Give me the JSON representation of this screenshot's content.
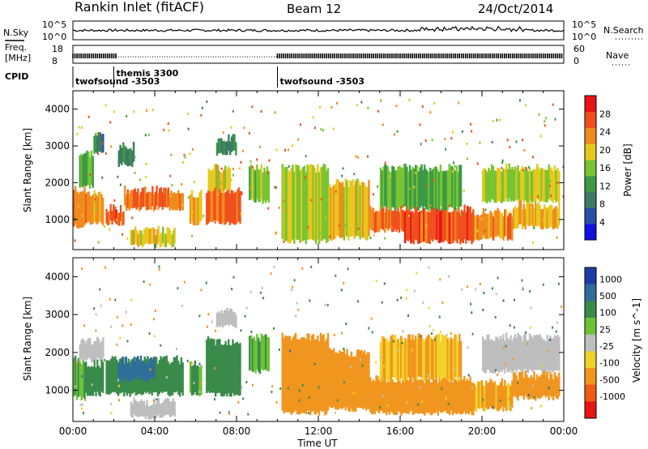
{
  "header": {
    "station": "Rankin Inlet (fitACF)",
    "beam": "Beam 12",
    "date": "24/Oct/2014"
  },
  "noise_panel": {
    "left_label": "N.Sky",
    "right_label": "N.Search",
    "left_ticks": [
      "10^5",
      "10^0"
    ],
    "right_ticks": [
      "10^5",
      "10^0"
    ]
  },
  "freq_panel": {
    "left_label_1": "Freq.",
    "left_label_2": "[MHz]",
    "left_ticks": [
      "18",
      "8"
    ],
    "right_label": "Nave",
    "right_ticks": [
      "60",
      "0"
    ]
  },
  "cpid_panel": {
    "label": "CPID",
    "modes": [
      {
        "name": "twofsound -3503",
        "start_hour": 0.0
      },
      {
        "name": "themis 3300",
        "start_hour": 2.0
      },
      {
        "name": "twofsound -3503",
        "start_hour": 10.0
      }
    ]
  },
  "colors": {
    "power_scale": [
      "#1010e0",
      "#2850a8",
      "#3c7a64",
      "#3c9a46",
      "#78c432",
      "#e6c81e",
      "#f08c1e",
      "#f0501e",
      "#e61414"
    ],
    "velocity_scale": [
      "#1e3ca8",
      "#2e6e9a",
      "#3a8a4a",
      "#6cc236",
      "#bebebe",
      "#f0d228",
      "#f0961e",
      "#f05a14",
      "#e61414"
    ]
  },
  "chart_data": [
    {
      "type": "heatmap",
      "title": "Power",
      "ylabel": "Slant Range [km]",
      "xlabel": "",
      "x_unit": "UT hour",
      "xlim": [
        0,
        24
      ],
      "ylim": [
        180,
        4500
      ],
      "y_ticks": [
        1000,
        2000,
        3000,
        4000
      ],
      "colorbar": {
        "label": "Power [dB]",
        "ticks": [
          4,
          8,
          12,
          16,
          20,
          24,
          28
        ],
        "range": [
          0,
          32
        ]
      },
      "echo_regions": [
        {
          "x": [
            0.0,
            0.6
          ],
          "y": [
            800,
            1800
          ],
          "level": 26
        },
        {
          "x": [
            0.6,
            1.5
          ],
          "y": [
            900,
            1700
          ],
          "level": 24
        },
        {
          "x": [
            0.3,
            1.0
          ],
          "y": [
            1900,
            2800
          ],
          "level": 14
        },
        {
          "x": [
            1.0,
            1.5
          ],
          "y": [
            2800,
            3300
          ],
          "level": 8
        },
        {
          "x": [
            1.6,
            2.5
          ],
          "y": [
            900,
            1300
          ],
          "level": 28
        },
        {
          "x": [
            2.5,
            5.4
          ],
          "y": [
            1300,
            1800
          ],
          "level": 26
        },
        {
          "x": [
            2.8,
            5.0
          ],
          "y": [
            300,
            700
          ],
          "level": 20
        },
        {
          "x": [
            2.2,
            3.0
          ],
          "y": [
            2500,
            3000
          ],
          "level": 10
        },
        {
          "x": [
            5.7,
            6.3
          ],
          "y": [
            900,
            1700
          ],
          "level": 22
        },
        {
          "x": [
            6.5,
            8.2
          ],
          "y": [
            900,
            1800
          ],
          "level": 26
        },
        {
          "x": [
            6.6,
            7.7
          ],
          "y": [
            1800,
            2400
          ],
          "level": 20
        },
        {
          "x": [
            7.0,
            8.0
          ],
          "y": [
            2800,
            3200
          ],
          "level": 10
        },
        {
          "x": [
            8.6,
            9.6
          ],
          "y": [
            1500,
            2400
          ],
          "level": 16
        },
        {
          "x": [
            10.2,
            12.5
          ],
          "y": [
            400,
            2400
          ],
          "level": 18
        },
        {
          "x": [
            12.5,
            14.5
          ],
          "y": [
            500,
            2000
          ],
          "level": 20
        },
        {
          "x": [
            14.5,
            16.2
          ],
          "y": [
            700,
            1300
          ],
          "level": 26
        },
        {
          "x": [
            16.2,
            19.6
          ],
          "y": [
            400,
            1300
          ],
          "level": 28
        },
        {
          "x": [
            15.0,
            19.0
          ],
          "y": [
            1300,
            2400
          ],
          "level": 14
        },
        {
          "x": [
            19.6,
            21.5
          ],
          "y": [
            500,
            1200
          ],
          "level": 24
        },
        {
          "x": [
            20.0,
            23.8
          ],
          "y": [
            1500,
            2400
          ],
          "level": 18
        },
        {
          "x": [
            21.5,
            23.8
          ],
          "y": [
            800,
            1400
          ],
          "level": 22
        }
      ]
    },
    {
      "type": "heatmap",
      "title": "Velocity",
      "ylabel": "Slant Range [km]",
      "xlabel": "Time UT",
      "x_unit": "UT hour",
      "xlim": [
        0,
        24
      ],
      "ylim": [
        180,
        4500
      ],
      "y_ticks": [
        1000,
        2000,
        3000,
        4000
      ],
      "x_ticks": [
        "00:00",
        "04:00",
        "08:00",
        "12:00",
        "16:00",
        "20:00",
        "00:00"
      ],
      "colorbar": {
        "label": "Velocity [m s^-1]",
        "ticks": [
          "1000",
          "500",
          "100",
          "25",
          "-25",
          "-100",
          "-500",
          "-1000"
        ]
      },
      "echo_regions": [
        {
          "x": [
            0.0,
            0.6
          ],
          "y": [
            800,
            1800
          ],
          "level": 100
        },
        {
          "x": [
            0.3,
            1.5
          ],
          "y": [
            1800,
            2300
          ],
          "level": 0
        },
        {
          "x": [
            0.6,
            1.5
          ],
          "y": [
            900,
            1700
          ],
          "level": 300
        },
        {
          "x": [
            1.6,
            5.4
          ],
          "y": [
            900,
            1800
          ],
          "level": 300
        },
        {
          "x": [
            2.2,
            4.0
          ],
          "y": [
            1300,
            1800
          ],
          "level": 700
        },
        {
          "x": [
            2.8,
            5.0
          ],
          "y": [
            300,
            700
          ],
          "level": 0
        },
        {
          "x": [
            5.7,
            6.3
          ],
          "y": [
            900,
            1700
          ],
          "level": 100
        },
        {
          "x": [
            6.5,
            8.2
          ],
          "y": [
            900,
            2300
          ],
          "level": 400
        },
        {
          "x": [
            7.0,
            8.0
          ],
          "y": [
            2700,
            3100
          ],
          "level": 0
        },
        {
          "x": [
            8.6,
            9.6
          ],
          "y": [
            1500,
            2400
          ],
          "level": 100
        },
        {
          "x": [
            10.2,
            12.5
          ],
          "y": [
            400,
            2400
          ],
          "level": -150
        },
        {
          "x": [
            12.5,
            14.5
          ],
          "y": [
            500,
            2000
          ],
          "level": -200
        },
        {
          "x": [
            14.5,
            19.6
          ],
          "y": [
            400,
            1300
          ],
          "level": -300
        },
        {
          "x": [
            15.0,
            19.0
          ],
          "y": [
            1300,
            2400
          ],
          "level": -100
        },
        {
          "x": [
            19.6,
            21.5
          ],
          "y": [
            500,
            1200
          ],
          "level": -100
        },
        {
          "x": [
            20.0,
            23.8
          ],
          "y": [
            1500,
            2400
          ],
          "level": 0
        },
        {
          "x": [
            21.5,
            23.8
          ],
          "y": [
            800,
            1400
          ],
          "level": -200
        }
      ]
    }
  ]
}
